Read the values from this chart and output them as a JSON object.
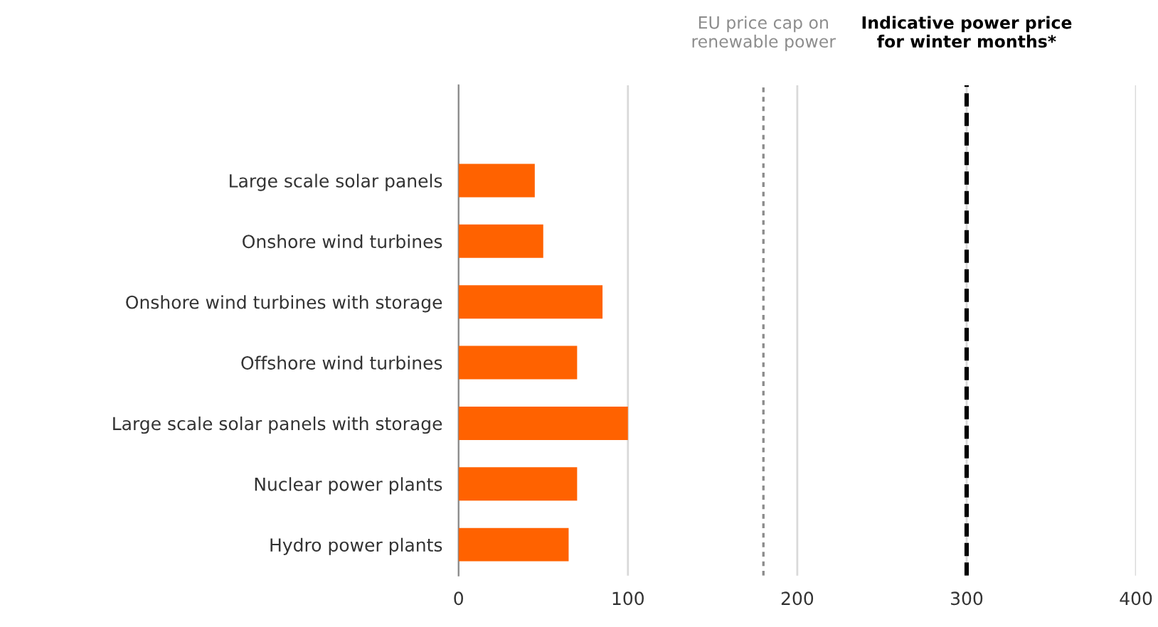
{
  "chart_data": {
    "type": "bar",
    "orientation": "horizontal",
    "categories": [
      "Large scale solar panels",
      "Onshore wind turbines",
      "Onshore wind turbines with storage",
      "Offshore wind turbines",
      "Large scale solar panels with storage",
      "Nuclear power plants",
      "Hydro power plants"
    ],
    "values": [
      45,
      50,
      85,
      70,
      100,
      70,
      65
    ],
    "color": "#ff6200",
    "xlim": [
      0,
      400
    ],
    "xticks": [
      0,
      100,
      200,
      300,
      400
    ],
    "grid": "x",
    "ref_lines": [
      {
        "axis": "x",
        "value": 180,
        "label": "EU price cap on\nrenewable power",
        "color": "#8c8c8c",
        "line_style": "dotted"
      },
      {
        "axis": "x",
        "value": 300,
        "label": "Indicative power price\nfor winter months*",
        "color": "#000000",
        "line_style": "dashed"
      }
    ]
  }
}
